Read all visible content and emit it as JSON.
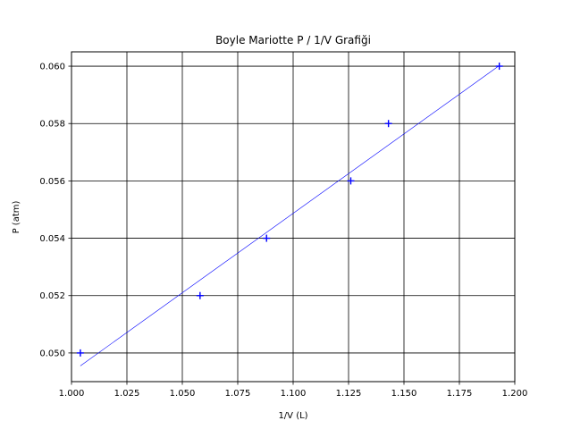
{
  "chart_data": {
    "type": "scatter",
    "title": "Boyle Mariotte P / 1/V Grafiği",
    "xlabel": "1/V (L)",
    "ylabel": "P (atm)",
    "xlim": [
      1.0,
      1.2
    ],
    "ylim": [
      0.049,
      0.0605
    ],
    "xticks": [
      "1.000",
      "1.025",
      "1.050",
      "1.075",
      "1.100",
      "1.125",
      "1.150",
      "1.175",
      "1.200"
    ],
    "yticks": [
      "0.050",
      "0.052",
      "0.054",
      "0.056",
      "0.058",
      "0.060"
    ],
    "grid": true,
    "series": [
      {
        "marker": "+",
        "color": "#0000ff",
        "x": [
          1.004,
          1.058,
          1.088,
          1.126,
          1.143,
          1.193
        ],
        "y": [
          0.05,
          0.052,
          0.054,
          0.056,
          0.058,
          0.06
        ]
      }
    ],
    "fit_line": {
      "color": "#0000ff",
      "x": [
        1.004,
        1.193
      ],
      "y": [
        0.04955,
        0.06002
      ]
    }
  }
}
